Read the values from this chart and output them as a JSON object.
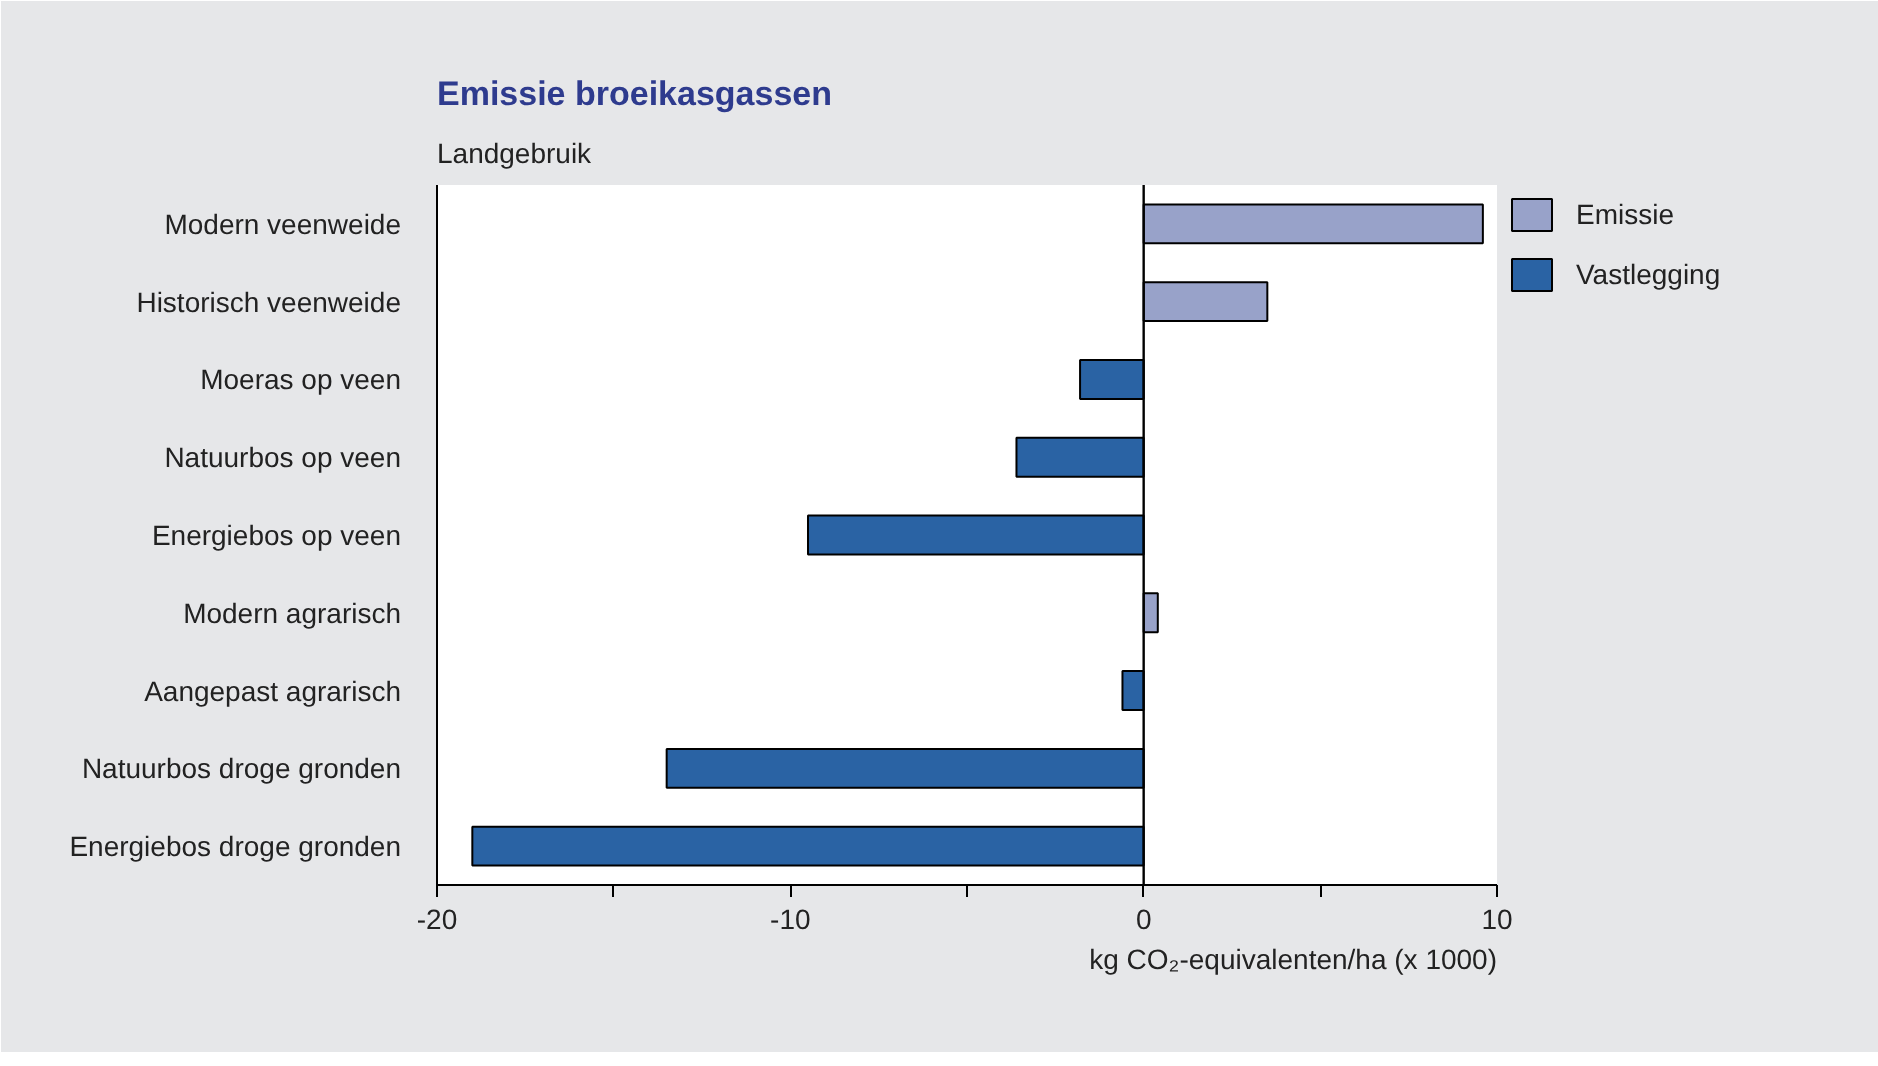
{
  "chart_data": {
    "type": "bar",
    "orientation": "horizontal",
    "stacked": true,
    "title": "Emissie broeikasgassen",
    "ylabel": "Landgebruik",
    "xlabel": "kg CO₂-equivalenten/ha (x 1000)",
    "categories": [
      "Modern veenweide",
      "Historisch veenweide",
      "Moeras op veen",
      "Natuurbos op veen",
      "Energiebos op veen",
      "Modern agrarisch",
      "Aangepast agrarisch",
      "Natuurbos droge gronden",
      "Energiebos droge gronden"
    ],
    "series": [
      {
        "name": "Emissie",
        "color": "#98a2c9",
        "values": [
          9.6,
          3.5,
          null,
          null,
          null,
          0.4,
          null,
          null,
          null
        ]
      },
      {
        "name": "Vastlegging",
        "color": "#2a63a4",
        "values": [
          null,
          null,
          -1.8,
          -3.6,
          -9.5,
          null,
          -0.6,
          -13.5,
          -19.0
        ]
      }
    ],
    "xlim": [
      -20,
      10
    ],
    "xticks": [
      -20,
      {
        "value": -15,
        "label": null
      },
      -10,
      {
        "value": -5,
        "label": null
      },
      0,
      {
        "value": 5,
        "label": null
      },
      10
    ],
    "ref_lines": [
      {
        "axis": "x",
        "value": 0,
        "color": "#000000"
      }
    ],
    "legend": "top right"
  }
}
